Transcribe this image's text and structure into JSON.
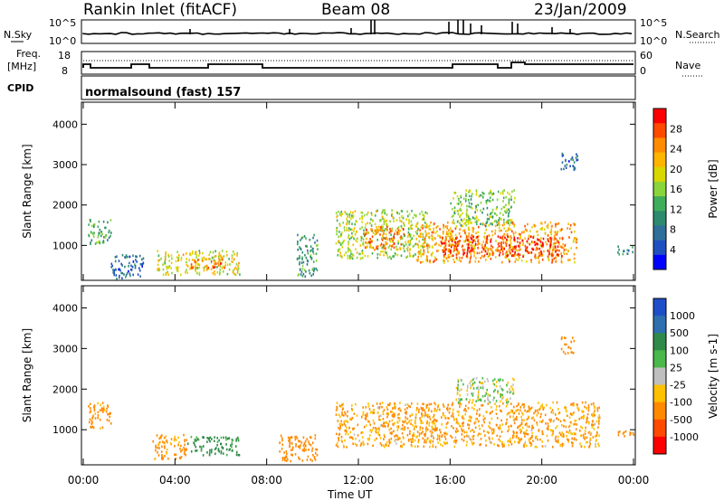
{
  "header": {
    "station": "Rankin Inlet (fitACF)",
    "beam": "Beam 08",
    "date": "23/Jan/2009"
  },
  "summary_panel": {
    "left_label": "N.Sky",
    "right_label": "N.Search",
    "y_ticks": [
      "10^5",
      "10^0"
    ],
    "right_ticks": [
      "10^5",
      "10^0"
    ],
    "freq_label_1": "Freq.",
    "freq_label_2": "[MHz]",
    "freq_ticks": [
      "18",
      "8"
    ],
    "nave_label": "Nave",
    "nave_ticks": [
      "60",
      "0"
    ],
    "cpid_label": "CPID",
    "cpid_text": "normalsound (fast) 157"
  },
  "chart_data": [
    {
      "type": "heatmap",
      "name": "Power",
      "x_label": "",
      "ylabel": "Slant Range [km]",
      "x_ticks": [
        "00:00",
        "04:00",
        "08:00",
        "12:00",
        "16:00",
        "20:00",
        "00:00"
      ],
      "y_ticks": [
        "1000",
        "2000",
        "3000",
        "4000"
      ],
      "xlim": [
        0,
        24
      ],
      "ylim": [
        180,
        4500
      ],
      "colorbar": {
        "label": "Power [dB]",
        "ticks": [
          "28",
          "24",
          "20",
          "16",
          "12",
          "8",
          "4"
        ],
        "colors": [
          "#ff0000",
          "#ff4a00",
          "#ff8c00",
          "#ffb400",
          "#d8d800",
          "#8ad43c",
          "#3fae5a",
          "#2e8a6e",
          "#2f6f9a",
          "#2050c0",
          "#0000ff"
        ]
      },
      "regions": [
        {
          "t0": 0.2,
          "t1": 1.2,
          "r0": 1050,
          "r1": 1700,
          "v": 12
        },
        {
          "t0": 1.2,
          "t1": 2.6,
          "r0": 200,
          "r1": 800,
          "v": 6
        },
        {
          "t0": 3.2,
          "t1": 6.8,
          "r0": 300,
          "r1": 900,
          "v": 18
        },
        {
          "t0": 4.5,
          "t1": 6.3,
          "r0": 420,
          "r1": 700,
          "v": 24
        },
        {
          "t0": 9.3,
          "t1": 10.2,
          "r0": 250,
          "r1": 1300,
          "v": 10
        },
        {
          "t0": 11.0,
          "t1": 15.0,
          "r0": 700,
          "r1": 1900,
          "v": 16
        },
        {
          "t0": 12.2,
          "t1": 14.0,
          "r0": 900,
          "r1": 1500,
          "v": 24
        },
        {
          "t0": 14.5,
          "t1": 21.5,
          "r0": 600,
          "r1": 1600,
          "v": 22
        },
        {
          "t0": 15.5,
          "t1": 21.0,
          "r0": 750,
          "r1": 1250,
          "v": 29
        },
        {
          "t0": 16.0,
          "t1": 18.8,
          "r0": 1500,
          "r1": 2400,
          "v": 14
        },
        {
          "t0": 20.8,
          "t1": 21.6,
          "r0": 2900,
          "r1": 3300,
          "v": 6
        },
        {
          "t0": 23.2,
          "t1": 24.0,
          "r0": 800,
          "r1": 1000,
          "v": 8
        }
      ]
    },
    {
      "type": "heatmap",
      "name": "Velocity",
      "x_label": "Time UT",
      "ylabel": "Slant Range [km]",
      "x_ticks": [
        "00:00",
        "04:00",
        "08:00",
        "12:00",
        "16:00",
        "20:00",
        "00:00"
      ],
      "y_ticks": [
        "1000",
        "2000",
        "3000",
        "4000"
      ],
      "xlim": [
        0,
        24
      ],
      "ylim": [
        180,
        4500
      ],
      "colorbar": {
        "label": "Velocity [m s-1]",
        "ticks": [
          "1000",
          "500",
          "100",
          "25",
          "-25",
          "-100",
          "-500",
          "-1000"
        ],
        "colors": [
          "#1f4fc8",
          "#2e6fb0",
          "#2f8a4a",
          "#4bb84b",
          "#bfbfbf",
          "#ffc000",
          "#ff8a00",
          "#ff4a00",
          "#ff0000"
        ]
      },
      "regions": [
        {
          "t0": 0.2,
          "t1": 1.2,
          "r0": 1050,
          "r1": 1700,
          "v": -150
        },
        {
          "t0": 3.0,
          "t1": 4.5,
          "r0": 300,
          "r1": 900,
          "v": -150
        },
        {
          "t0": 4.5,
          "t1": 6.8,
          "r0": 400,
          "r1": 850,
          "v": 150
        },
        {
          "t0": 8.5,
          "t1": 10.2,
          "r0": 250,
          "r1": 900,
          "v": -300
        },
        {
          "t0": 11.0,
          "t1": 22.5,
          "r0": 600,
          "r1": 1700,
          "v": -120
        },
        {
          "t0": 16.2,
          "t1": 18.8,
          "r0": 1700,
          "r1": 2300,
          "v": 0
        },
        {
          "t0": 20.8,
          "t1": 21.4,
          "r0": 2900,
          "r1": 3300,
          "v": -300
        },
        {
          "t0": 23.2,
          "t1": 24.0,
          "r0": 800,
          "r1": 1000,
          "v": -200
        }
      ]
    }
  ]
}
